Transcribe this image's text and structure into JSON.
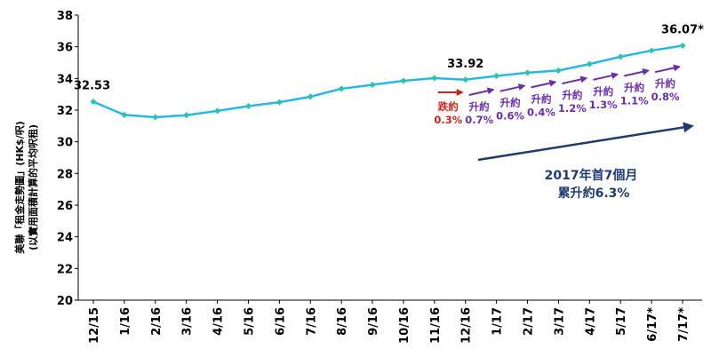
{
  "chart_data": {
    "type": "line",
    "categories": [
      "12/15",
      "1/16",
      "2/16",
      "3/16",
      "4/16",
      "5/16",
      "6/16",
      "7/16",
      "8/16",
      "9/16",
      "10/16",
      "11/16",
      "12/16",
      "1/17",
      "2/17",
      "3/17",
      "4/17",
      "5/17",
      "6/17*",
      "7/17*"
    ],
    "values": [
      32.53,
      31.7,
      31.55,
      31.68,
      31.95,
      32.25,
      32.5,
      32.85,
      33.35,
      33.6,
      33.85,
      34.02,
      33.92,
      34.16,
      34.36,
      34.5,
      34.91,
      35.37,
      35.76,
      36.07
    ],
    "ylabel_lines": [
      "美聯「租金走勢圖」(HK$/呎)",
      "(以實用面積計算的平均呎租)"
    ],
    "ylim": [
      20,
      38
    ],
    "yticks": [
      "20",
      "22",
      "24",
      "26",
      "28",
      "30",
      "32",
      "34",
      "36",
      "38"
    ],
    "grid": false,
    "line_color": "#29b6e8",
    "marker_color": "#2ec4a8",
    "data_labels": [
      {
        "index": 0,
        "text": "32.53"
      },
      {
        "index": 12,
        "text": "33.92"
      },
      {
        "index": 19,
        "text": "36.07*"
      }
    ],
    "monthly_changes": [
      {
        "from": 11,
        "to": 12,
        "line1": "跌約",
        "line2": "0.3%",
        "color": "#c0281e"
      },
      {
        "from": 12,
        "to": 13,
        "line1": "升約",
        "line2": "0.7%",
        "color": "#6a2fa8"
      },
      {
        "from": 13,
        "to": 14,
        "line1": "升約",
        "line2": "0.6%",
        "color": "#6a2fa8"
      },
      {
        "from": 14,
        "to": 15,
        "line1": "升約",
        "line2": "0.4%",
        "color": "#6a2fa8"
      },
      {
        "from": 15,
        "to": 16,
        "line1": "升約",
        "line2": "1.2%",
        "color": "#6a2fa8"
      },
      {
        "from": 16,
        "to": 17,
        "line1": "升約",
        "line2": "1.3%",
        "color": "#6a2fa8"
      },
      {
        "from": 17,
        "to": 18,
        "line1": "升約",
        "line2": "1.1%",
        "color": "#6a2fa8"
      },
      {
        "from": 18,
        "to": 19,
        "line1": "升約",
        "line2": "0.8%",
        "color": "#6a2fa8"
      }
    ],
    "summary": {
      "line1": "2017年首7個月",
      "line2": "累升約6.3%",
      "color": "#1f3a6e"
    }
  }
}
